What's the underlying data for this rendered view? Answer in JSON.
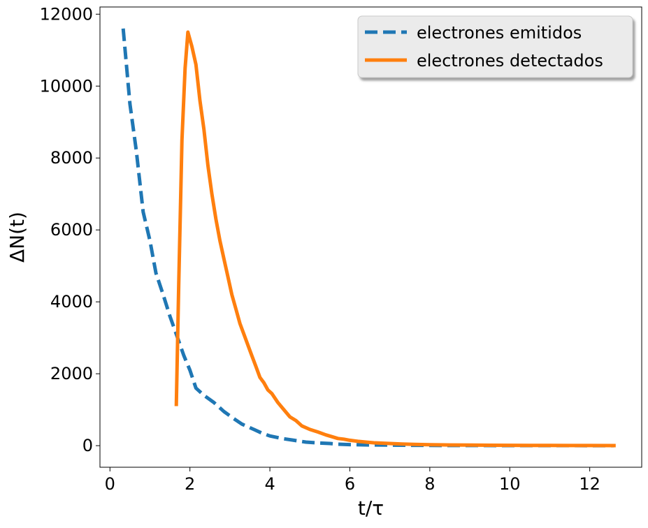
{
  "chart_data": {
    "type": "line",
    "title": "",
    "xlabel": "t/τ",
    "ylabel": "ΔN(t)",
    "xlim": [
      -0.25,
      13.3
    ],
    "ylim": [
      -600,
      12200
    ],
    "xticks": [
      0,
      2,
      4,
      6,
      8,
      10,
      12
    ],
    "yticks": [
      0,
      2000,
      4000,
      6000,
      8000,
      10000,
      12000
    ],
    "grid": false,
    "legend_position": "top-right",
    "series": [
      {
        "name": "electrones emitidos",
        "color": "#1f77b4",
        "style": "dashed",
        "x": [
          0.33,
          0.5,
          0.66,
          0.83,
          1.0,
          1.15,
          1.33,
          1.5,
          1.66,
          1.85,
          2.0,
          2.15,
          2.35,
          2.6,
          2.85,
          3.1,
          3.3,
          3.6,
          3.8,
          4.0,
          4.3,
          4.6,
          4.9,
          5.2,
          5.5,
          5.7,
          6.0,
          6.5,
          7.0,
          7.5,
          8.0,
          8.5,
          9.0,
          10.0,
          11.0,
          12.0,
          12.6
        ],
        "y": [
          11600,
          9500,
          8200,
          6500,
          5700,
          4800,
          4200,
          3600,
          3100,
          2500,
          2100,
          1600,
          1400,
          1200,
          950,
          750,
          600,
          450,
          350,
          270,
          200,
          150,
          100,
          75,
          60,
          40,
          30,
          20,
          15,
          10,
          8,
          5,
          4,
          3,
          2,
          1,
          1
        ]
      },
      {
        "name": "electrones detectados",
        "color": "#ff7f0e",
        "style": "solid",
        "x": [
          1.66,
          1.72,
          1.8,
          1.88,
          1.95,
          2.05,
          2.15,
          2.25,
          2.35,
          2.45,
          2.55,
          2.65,
          2.75,
          2.85,
          2.95,
          3.05,
          3.15,
          3.25,
          3.35,
          3.45,
          3.55,
          3.65,
          3.75,
          3.85,
          3.95,
          4.05,
          4.2,
          4.35,
          4.5,
          4.65,
          4.8,
          5.0,
          5.2,
          5.4,
          5.55,
          5.7,
          5.85,
          6.0,
          6.2,
          6.4,
          6.6,
          6.8,
          7.0,
          7.3,
          7.6,
          8.0,
          8.5,
          9.0,
          9.5,
          10.0,
          10.5,
          11.0,
          11.5,
          12.0,
          12.65
        ],
        "y": [
          1100,
          4500,
          8500,
          10500,
          11500,
          11100,
          10600,
          9600,
          8800,
          7800,
          7000,
          6300,
          5700,
          5200,
          4700,
          4200,
          3800,
          3400,
          3100,
          2800,
          2500,
          2200,
          1900,
          1750,
          1550,
          1450,
          1200,
          1000,
          800,
          700,
          550,
          450,
          380,
          300,
          250,
          200,
          180,
          150,
          120,
          100,
          80,
          70,
          60,
          45,
          35,
          25,
          20,
          15,
          12,
          10,
          8,
          6,
          5,
          4,
          3
        ]
      }
    ]
  }
}
